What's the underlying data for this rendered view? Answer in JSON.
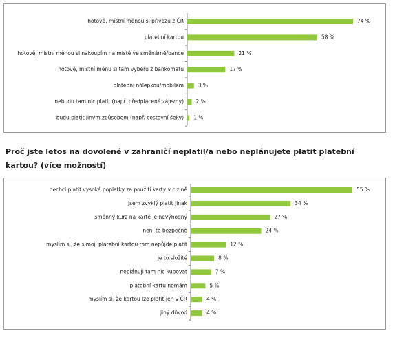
{
  "chart_data": [
    {
      "type": "hbar",
      "color": "#92c83e",
      "categories": [
        "hotově, místní měnou si přivezu z ČR",
        "platební kartou",
        "hotově, místní měnou si nakoupím na místě ve směnárně/bance",
        "hotově, místní měnu si tam vyberu z bankomatu",
        "platební nálepkou/mobilem",
        "nebudu tam nic platit (např. předplacené zájezdy)",
        "budu platit jiným způsobem (např. cestovní šeky)"
      ],
      "values": [
        74,
        58,
        21,
        17,
        3,
        2,
        1
      ],
      "value_labels": [
        "74 %",
        "58 %",
        "21 %",
        "17 %",
        "3 %",
        "2 %",
        "1 %"
      ]
    },
    {
      "type": "hbar",
      "color": "#92c83e",
      "title": "Proč jste letos na dovolené v zahraničí neplatil/a nebo neplánujete platit platební kartou? (více možností)",
      "categories": [
        "nechci platit vysoké poplatky za použití karty v cizině",
        "jsem zvyklý platit jinak",
        "směnný kurz na kartě je nevýhodný",
        "není to bezpečné",
        "myslím si, že s mojí platební kartou tam nepůjde platit",
        "je to složité",
        "neplánuji tam nic kupovat",
        "platební kartu nemám",
        "myslím si, že kartou lze platit jen v ČR",
        "jiný důvod"
      ],
      "values": [
        55,
        34,
        27,
        24,
        12,
        8,
        7,
        5,
        4,
        4
      ],
      "value_labels": [
        "55 %",
        "34 %",
        "27 %",
        "24 %",
        "12 %",
        "8 %",
        "7 %",
        "5 %",
        "4 %",
        "4 %"
      ]
    }
  ]
}
